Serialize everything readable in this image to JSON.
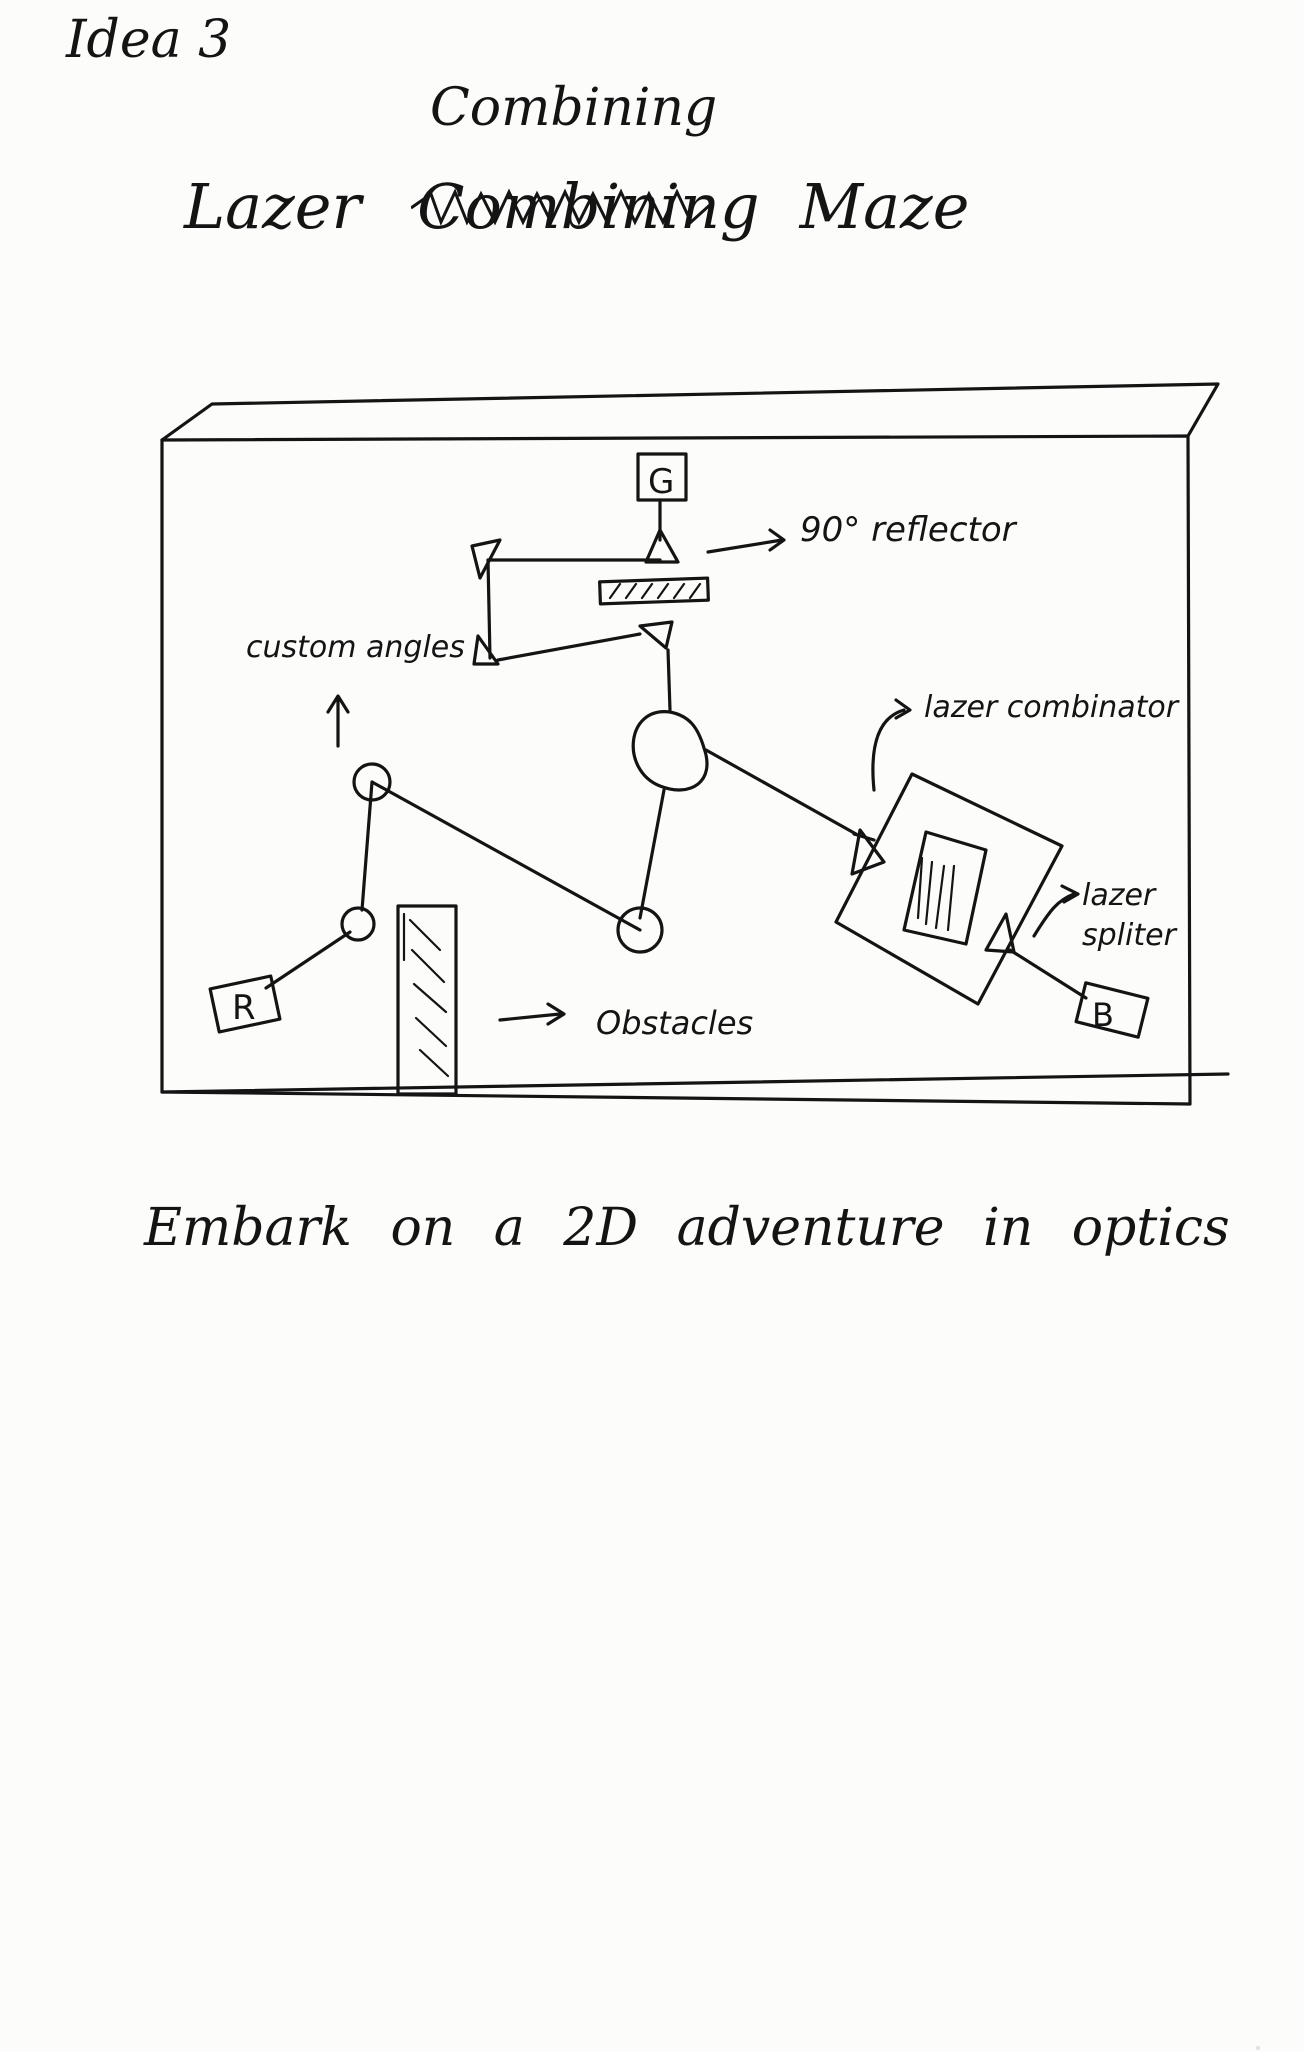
{
  "sheet": {
    "heading": "Idea 3",
    "title": {
      "word_1": "Lazer",
      "struck_word": "Combining",
      "inserted_word": "Combining",
      "word_3": "Maze"
    },
    "tagline": "Embark on a 2D adventure in optics"
  },
  "diagram": {
    "targets": {
      "green": "G",
      "red": "R",
      "blue": "B"
    },
    "annotations": {
      "reflector": "90° reflector",
      "custom_angles": "custom angles",
      "combinator": "lazer combinator",
      "splitter_line_1": "lazer",
      "splitter_line_2": "spliter",
      "obstacles": "Obstacles"
    },
    "icons": {
      "arrow": "arrow-right-icon",
      "up_arrow": "arrow-up-icon",
      "hook_arrow": "hook-arrow-icon"
    }
  },
  "colors": {
    "paper": "#fcfcfb",
    "ink": "#141414"
  }
}
